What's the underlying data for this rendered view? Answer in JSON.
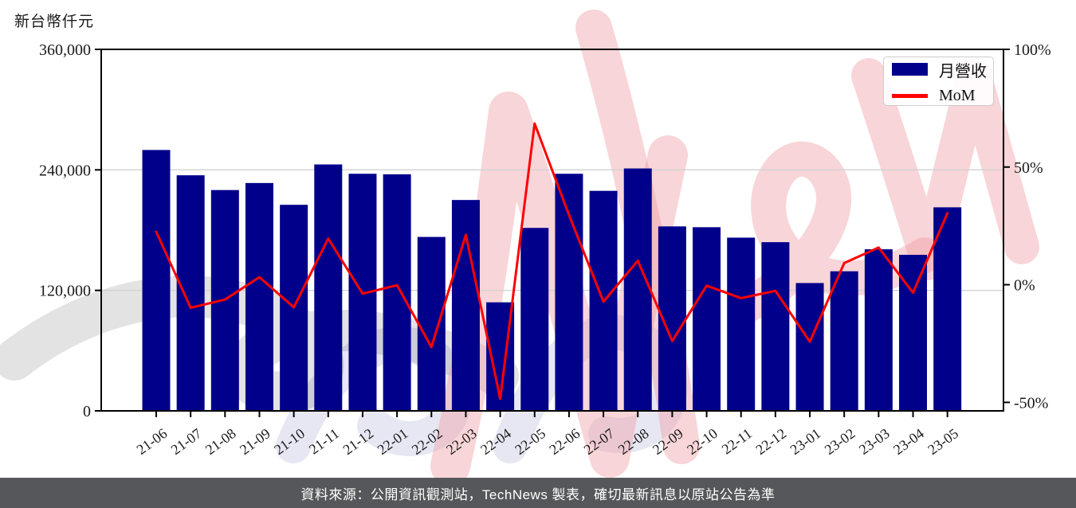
{
  "watermark": "TechNews",
  "axes": {
    "left": {
      "unit_label": "新台幣仟元"
    }
  },
  "legend": {
    "items": [
      {
        "label": "月營收",
        "swatch": "navy-bar"
      },
      {
        "label": "MoM",
        "swatch": "red-line"
      }
    ]
  },
  "footer": {
    "text": "資料來源：公開資訊觀測站，TechNews 製表，確切最新訊息以原站公告為準"
  },
  "chart_data": {
    "type": "bar",
    "title": "",
    "categories": [
      "21-06",
      "21-07",
      "21-08",
      "21-09",
      "21-10",
      "21-11",
      "21-12",
      "22-01",
      "22-02",
      "22-03",
      "22-04",
      "22-05",
      "22-06",
      "22-07",
      "22-08",
      "22-09",
      "22-10",
      "22-11",
      "22-12",
      "23-01",
      "23-02",
      "23-03",
      "23-04",
      "23-05"
    ],
    "series": [
      {
        "name": "月營收",
        "type": "bar",
        "axis": "left",
        "color": "#00008B",
        "values": [
          259800,
          234600,
          219900,
          226900,
          205200,
          245400,
          236100,
          235600,
          173200,
          210000,
          108100,
          182200,
          236100,
          219100,
          241400,
          183700,
          182900,
          172500,
          168000,
          127300,
          139000,
          160900,
          155400,
          202700
        ]
      },
      {
        "name": "MoM",
        "type": "line",
        "axis": "right",
        "color": "#FF0000",
        "unit": "%",
        "values": [
          22.5,
          -9.8,
          -6.3,
          3.2,
          -9.6,
          19.6,
          -3.8,
          -0.2,
          -26.5,
          21.2,
          -48.5,
          68.5,
          29.6,
          -7.2,
          10.2,
          -23.9,
          -0.4,
          -5.7,
          -2.6,
          -24.2,
          9.2,
          15.8,
          -3.4,
          30.4
        ]
      }
    ],
    "left_axis": {
      "unit_label": "新台幣仟元",
      "ylim": [
        0,
        360000
      ],
      "ticks": [
        0,
        120000,
        240000,
        360000
      ],
      "tick_labels": [
        "0",
        "120,000",
        "240,000",
        "360,000"
      ],
      "grid_ticks": [
        120000,
        240000
      ]
    },
    "right_axis": {
      "ylim": [
        -53.6,
        100
      ],
      "ticks": [
        -50,
        0,
        50,
        100
      ],
      "tick_labels": [
        "-50%",
        "0%",
        "50%",
        "100%"
      ]
    },
    "grid": "horizontal",
    "legend_position": "upper right"
  }
}
